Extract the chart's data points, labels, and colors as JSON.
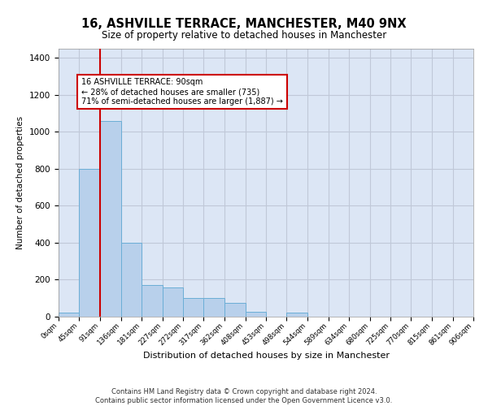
{
  "title_line1": "16, ASHVILLE TERRACE, MANCHESTER, M40 9NX",
  "title_line2": "Size of property relative to detached houses in Manchester",
  "xlabel": "Distribution of detached houses by size in Manchester",
  "ylabel": "Number of detached properties",
  "bin_edges": [
    0,
    45,
    91,
    136,
    181,
    227,
    272,
    317,
    362,
    408,
    453,
    498,
    544,
    589,
    634,
    680,
    725,
    770,
    815,
    861,
    906
  ],
  "bar_heights": [
    20,
    800,
    1060,
    400,
    170,
    160,
    100,
    100,
    75,
    25,
    0,
    20,
    0,
    0,
    0,
    0,
    0,
    0,
    0,
    0
  ],
  "bar_color": "#b8d0eb",
  "bar_edge_color": "#6baed6",
  "bar_linewidth": 0.7,
  "grid_color": "#c0c8d8",
  "background_color": "#dce6f5",
  "red_line_x": 90,
  "red_line_color": "#cc0000",
  "annotation_text": "16 ASHVILLE TERRACE: 90sqm\n← 28% of detached houses are smaller (735)\n71% of semi-detached houses are larger (1,887) →",
  "annotation_box_color": "#ffffff",
  "annotation_box_edge": "#cc0000",
  "ylim": [
    0,
    1450
  ],
  "yticks": [
    0,
    200,
    400,
    600,
    800,
    1000,
    1200,
    1400
  ],
  "footer_line1": "Contains HM Land Registry data © Crown copyright and database right 2024.",
  "footer_line2": "Contains public sector information licensed under the Open Government Licence v3.0."
}
